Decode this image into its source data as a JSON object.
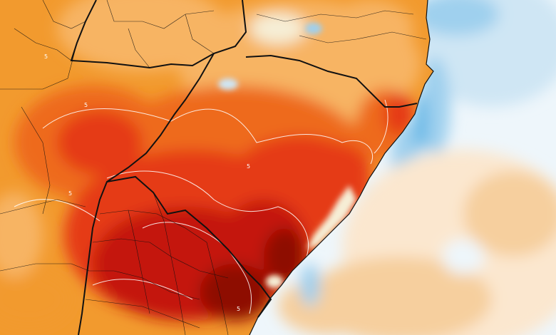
{
  "map": {
    "type": "temperature-anomaly-heatmap",
    "colors": {
      "ocean_cool_light": "#eef6fb",
      "ocean_cool": "#cfe6f4",
      "ocean_cold": "#9fd0ee",
      "ocean_cold_deep": "#64b7e6",
      "ocean_warm_light": "#fbe7cf",
      "ocean_warm": "#f6cf9e",
      "land_orange_light": "#f7b463",
      "land_orange": "#f29a2e",
      "land_red_orange": "#ee6b1c",
      "land_red": "#e53a14",
      "land_dark_red": "#c4140a",
      "land_darkest": "#8e0c06",
      "lagoon": "#f6eed6",
      "border": "#111111",
      "contour": "#ffffff"
    },
    "contour_labels": [
      "5",
      "5",
      "5",
      "5",
      "5"
    ]
  }
}
